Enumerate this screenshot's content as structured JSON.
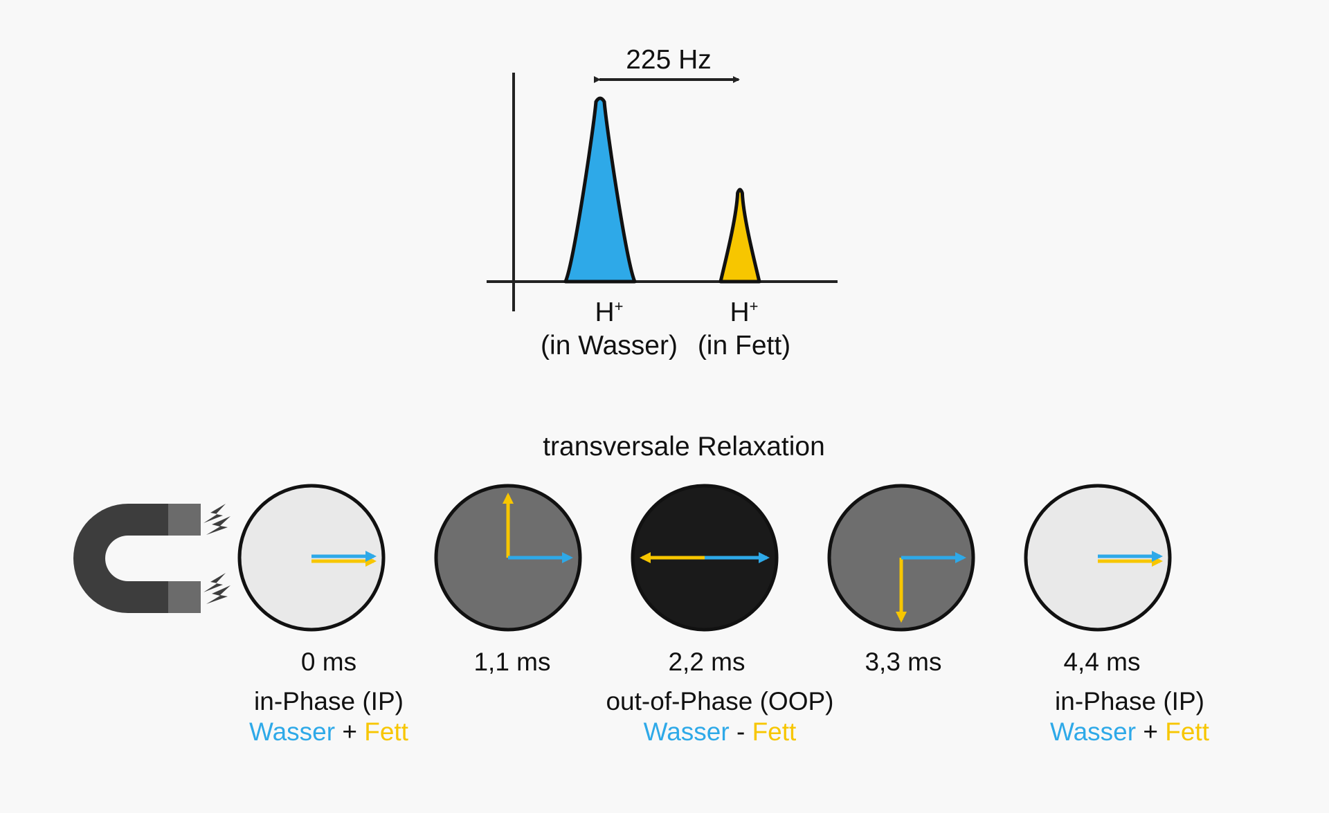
{
  "colors": {
    "water": "#2ea9e8",
    "fat": "#f7c600",
    "axis": "#222222",
    "magnet_dark": "#3d3d3d",
    "magnet_pole": "#6b6b6b"
  },
  "spectrum": {
    "frequency_gap": "225 Hz",
    "peaks": [
      {
        "symbol": "H",
        "charge": "+",
        "substance": "(in Wasser)",
        "color": "water",
        "relative_height": 1.0
      },
      {
        "symbol": "H",
        "charge": "+",
        "substance": "(in Fett)",
        "color": "fat",
        "relative_height": 0.5
      }
    ]
  },
  "relaxation": {
    "title": "transversale Relaxation",
    "magnet_icon": "horseshoe-magnet-icon",
    "timepoints": [
      {
        "time": "0 ms",
        "phase": "in-Phase (IP)",
        "water": "Wasser",
        "operator": "+",
        "fat": "Fett",
        "disc_color": "#e9e9e9",
        "water_angle_deg": 0,
        "fat_angle_deg": 0
      },
      {
        "time": "1,1 ms",
        "phase": "",
        "water": "",
        "operator": "",
        "fat": "",
        "disc_color": "#6e6e6e",
        "water_angle_deg": 0,
        "fat_angle_deg": 90
      },
      {
        "time": "2,2 ms",
        "phase": "out-of-Phase (OOP)",
        "water": "Wasser",
        "operator": "-",
        "fat": "Fett",
        "disc_color": "#1a1a1a",
        "water_angle_deg": 0,
        "fat_angle_deg": 180
      },
      {
        "time": "3,3 ms",
        "phase": "",
        "water": "",
        "operator": "",
        "fat": "",
        "disc_color": "#6e6e6e",
        "water_angle_deg": 0,
        "fat_angle_deg": 270
      },
      {
        "time": "4,4 ms",
        "phase": "in-Phase (IP)",
        "water": "Wasser",
        "operator": "+",
        "fat": "Fett",
        "disc_color": "#e9e9e9",
        "water_angle_deg": 0,
        "fat_angle_deg": 0
      }
    ]
  }
}
